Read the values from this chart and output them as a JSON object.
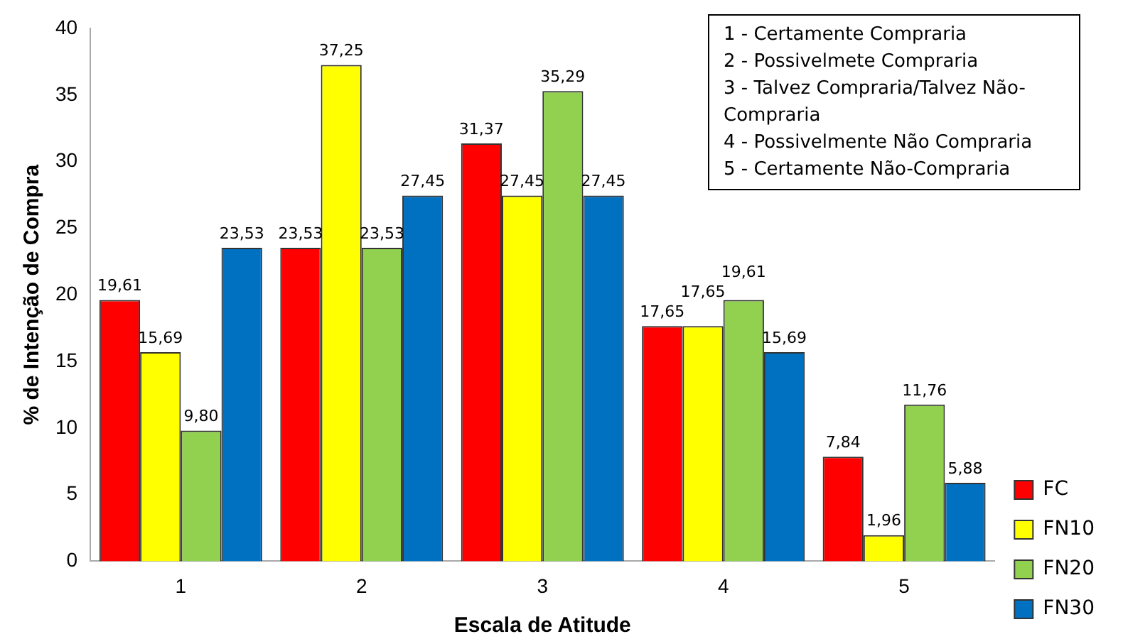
{
  "chart_data": {
    "type": "bar",
    "xlabel": "Escala de Atitude",
    "ylabel": "% de Intenção de Compra",
    "categories": [
      "1",
      "2",
      "3",
      "4",
      "5"
    ],
    "series": [
      {
        "name": "FC",
        "color": "#ff0000",
        "values": [
          19.61,
          23.53,
          31.37,
          17.65,
          7.84
        ],
        "value_labels": [
          "19,61",
          "23,53",
          "31,37",
          "17,65",
          "7,84"
        ]
      },
      {
        "name": "FN10",
        "color": "#ffff00",
        "values": [
          15.69,
          37.25,
          27.45,
          17.65,
          1.96
        ],
        "value_labels": [
          "15,69",
          "37,25",
          "27,45",
          "17,65",
          "1,96"
        ]
      },
      {
        "name": "FN20",
        "color": "#92d050",
        "values": [
          9.8,
          23.53,
          35.29,
          19.61,
          11.76
        ],
        "value_labels": [
          "9,80",
          "23,53",
          "35,29",
          "19,61",
          "11,76"
        ]
      },
      {
        "name": "FN30",
        "color": "#0070c0",
        "values": [
          23.53,
          27.45,
          27.45,
          15.69,
          5.88
        ],
        "value_labels": [
          "23,53",
          "27,45",
          "27,45",
          "15,69",
          "5,88"
        ]
      }
    ],
    "ylim": [
      0,
      40
    ],
    "yticks": [
      0,
      5,
      10,
      15,
      20,
      25,
      30,
      35,
      40
    ],
    "grid": false,
    "legend": "right",
    "annotations": [
      "1 - Certamente Compraria\n2 - Possivelmete Compraria\n3 - Talvez Compraria/Talvez Não-Compraria\n4 - Possivelmente Não Compraria\n5 - Certamente Não-Compraria"
    ]
  }
}
